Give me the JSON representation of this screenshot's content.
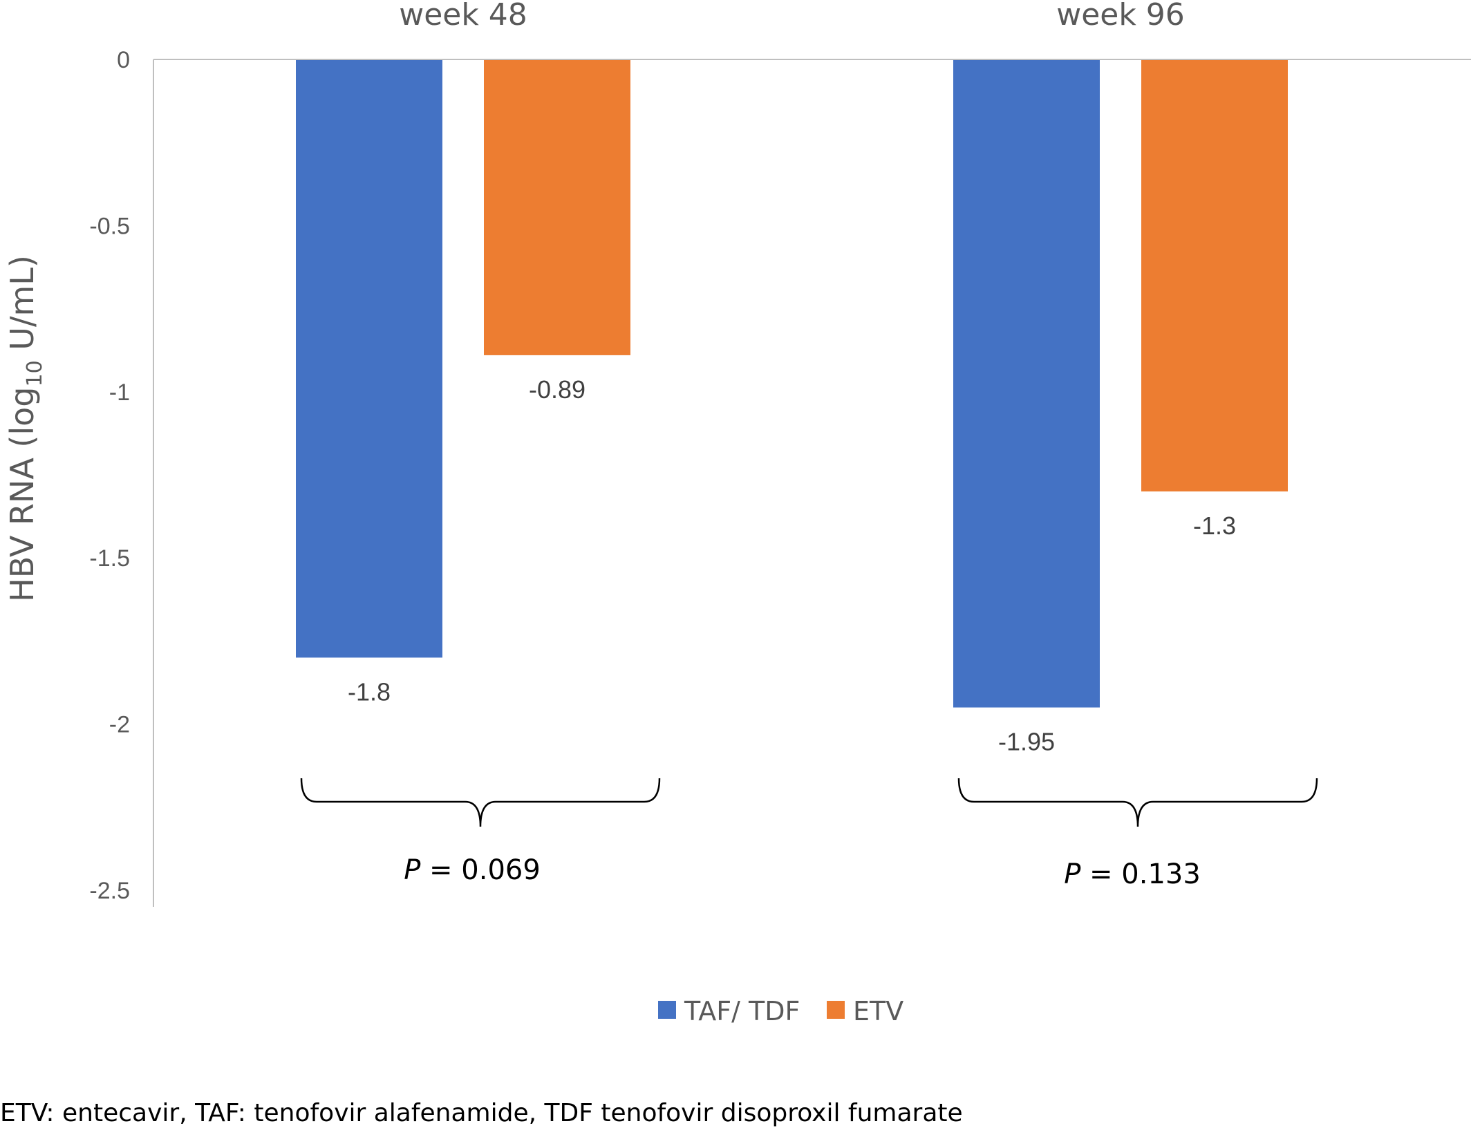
{
  "chart_data": {
    "type": "bar",
    "categories": [
      "week 48",
      "week 96"
    ],
    "series": [
      {
        "name": "TAF/ TDF",
        "color": "#4472C4",
        "values": [
          -1.8,
          -1.95
        ]
      },
      {
        "name": "ETV",
        "color": "#ED7D31",
        "values": [
          -0.89,
          -1.3
        ]
      }
    ],
    "data_labels": [
      [
        "-1.8",
        "-1.95"
      ],
      [
        "-0.89",
        "-1.3"
      ]
    ],
    "title": "",
    "ylabel": {
      "main": "HBV RNA (log",
      "sub": "10",
      "suffix": " U/mL)"
    },
    "ylim": [
      -2.5,
      0
    ],
    "yticks": [
      {
        "value": 0,
        "label": "0"
      },
      {
        "value": -0.5,
        "label": "-0.5"
      },
      {
        "value": -1,
        "label": "-1"
      },
      {
        "value": -1.5,
        "label": "-1.5"
      },
      {
        "value": -2,
        "label": "-2"
      },
      {
        "value": -2.5,
        "label": "-2.5"
      }
    ],
    "grid": false,
    "legend_position": "bottom-center",
    "annotations": [
      {
        "category": "week 48",
        "p_symbol": "P",
        "p_text": " = 0.069"
      },
      {
        "category": "week 96",
        "p_symbol": "P",
        "p_text": " = 0.133"
      }
    ]
  },
  "footnote": "ETV: entecavir, TAF: tenofovir alafenamide, TDF tenofovir disoproxil fumarate"
}
